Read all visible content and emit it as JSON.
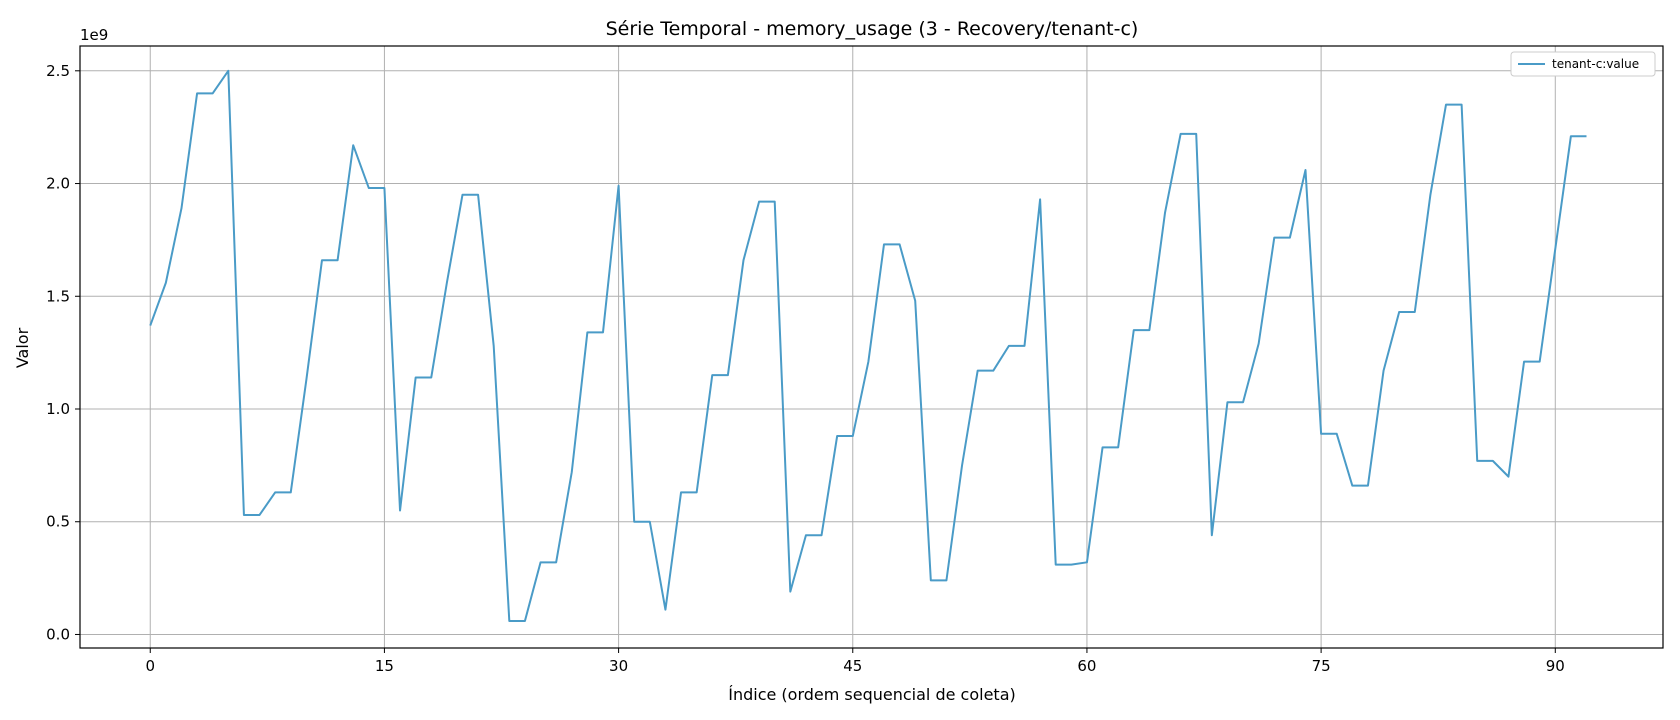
{
  "chart_data": {
    "type": "line",
    "title": "Série Temporal - memory_usage (3 - Recovery/tenant-c)",
    "xlabel": "Índice (ordem sequencial de coleta)",
    "ylabel": "Valor",
    "y_offset_label": "1e9",
    "xlim": [
      -4.5,
      96.9
    ],
    "ylim": [
      -0.06,
      2.61
    ],
    "xticks": [
      0,
      15,
      30,
      45,
      60,
      75,
      90
    ],
    "xtick_labels": [
      "0",
      "15",
      "30",
      "45",
      "60",
      "75",
      "90"
    ],
    "yticks": [
      0.0,
      0.5,
      1.0,
      1.5,
      2.0,
      2.5
    ],
    "ytick_labels": [
      "0.0",
      "0.5",
      "1.0",
      "1.5",
      "2.0",
      "2.5"
    ],
    "grid": true,
    "legend_position": "top-right",
    "series": [
      {
        "name": "tenant-c:value",
        "color": "#4a9bc7",
        "x": [
          0,
          1,
          2,
          3,
          4,
          5,
          6,
          7,
          8,
          9,
          10,
          11,
          12,
          13,
          14,
          15,
          16,
          17,
          18,
          19,
          20,
          21,
          22,
          23,
          24,
          25,
          26,
          27,
          28,
          29,
          30,
          31,
          32,
          33,
          34,
          35,
          36,
          37,
          38,
          39,
          40,
          41,
          42,
          43,
          44,
          45,
          46,
          47,
          48,
          49,
          50,
          51,
          52,
          53,
          54,
          55,
          56,
          57,
          58,
          59,
          60,
          61,
          62,
          63,
          64,
          65,
          66,
          67,
          68,
          69,
          70,
          71,
          72,
          73,
          74,
          75,
          76,
          77,
          78,
          79,
          80,
          81,
          82,
          83,
          84,
          85,
          86,
          87,
          88,
          89,
          90,
          91,
          92
        ],
        "y": [
          1.37,
          1.56,
          1.89,
          2.4,
          2.4,
          2.5,
          0.53,
          0.53,
          0.63,
          0.63,
          1.13,
          1.66,
          1.66,
          2.17,
          1.98,
          1.98,
          0.55,
          1.14,
          1.14,
          1.56,
          1.95,
          1.95,
          1.28,
          0.06,
          0.06,
          0.32,
          0.32,
          0.72,
          1.34,
          1.34,
          1.99,
          0.5,
          0.5,
          0.11,
          0.63,
          0.63,
          1.15,
          1.15,
          1.66,
          1.92,
          1.92,
          0.19,
          0.44,
          0.44,
          0.88,
          0.88,
          1.21,
          1.73,
          1.73,
          1.48,
          0.24,
          0.24,
          0.75,
          1.17,
          1.17,
          1.28,
          1.28,
          1.93,
          0.31,
          0.31,
          0.32,
          0.83,
          0.83,
          1.35,
          1.35,
          1.87,
          2.22,
          2.22,
          0.44,
          1.03,
          1.03,
          1.29,
          1.76,
          1.76,
          2.06,
          0.89,
          0.89,
          0.66,
          0.66,
          1.17,
          1.43,
          1.43,
          1.95,
          2.35,
          2.35,
          0.77,
          0.77,
          0.7,
          1.21,
          1.21,
          1.71,
          2.21,
          2.21
        ]
      }
    ]
  }
}
